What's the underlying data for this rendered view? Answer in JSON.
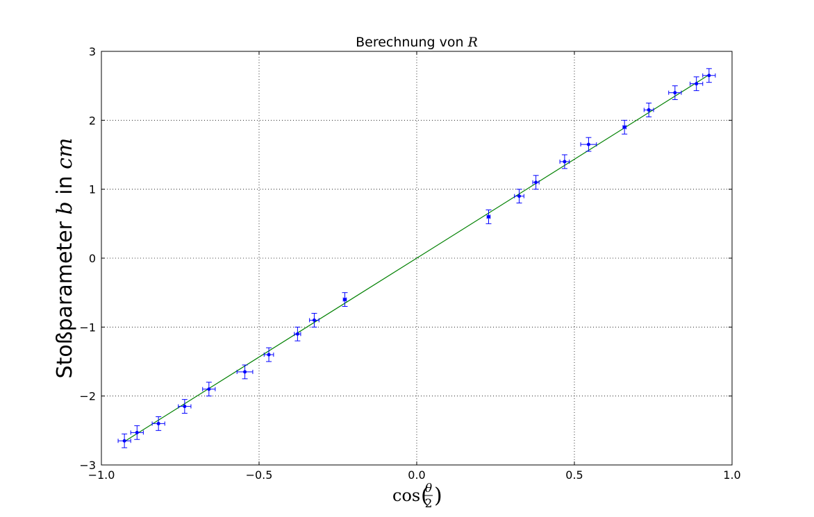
{
  "chart_data": {
    "type": "scatter",
    "title": "Berechnung von ",
    "title_math": "R",
    "xlabel_func": "cos",
    "xlabel_num": "θ",
    "xlabel_den": "2",
    "ylabel": "Stoßparameter ",
    "ylabel_math1": "b",
    "ylabel_mid": " in ",
    "ylabel_math2": "cm",
    "xlim": [
      -1.0,
      1.0
    ],
    "ylim": [
      -3,
      3
    ],
    "xticks": [
      -1.0,
      -0.5,
      0.0,
      0.5,
      1.0
    ],
    "xtick_labels": [
      "−1.0",
      "−0.5",
      "0.0",
      "0.5",
      "1.0"
    ],
    "yticks": [
      -3,
      -2,
      -1,
      0,
      1,
      2,
      3
    ],
    "ytick_labels": [
      "−3",
      "−2",
      "−1",
      "0",
      "1",
      "2",
      "3"
    ],
    "grid": true,
    "series": [
      {
        "kind": "errorbar",
        "color": "#0000ff",
        "points": [
          {
            "x": -0.927,
            "y": -2.65,
            "xerr": 0.02,
            "yerr": 0.1
          },
          {
            "x": -0.887,
            "y": -2.53,
            "xerr": 0.02,
            "yerr": 0.1
          },
          {
            "x": -0.819,
            "y": -2.4,
            "xerr": 0.02,
            "yerr": 0.1
          },
          {
            "x": -0.736,
            "y": -2.15,
            "xerr": 0.02,
            "yerr": 0.1
          },
          {
            "x": -0.659,
            "y": -1.9,
            "xerr": 0.02,
            "yerr": 0.1
          },
          {
            "x": -0.545,
            "y": -1.65,
            "xerr": 0.025,
            "yerr": 0.1
          },
          {
            "x": -0.469,
            "y": -1.4,
            "xerr": 0.015,
            "yerr": 0.1
          },
          {
            "x": -0.378,
            "y": -1.1,
            "xerr": 0.01,
            "yerr": 0.1
          },
          {
            "x": -0.325,
            "y": -0.9,
            "xerr": 0.015,
            "yerr": 0.1
          },
          {
            "x": -0.228,
            "y": -0.6,
            "xerr": 0.005,
            "yerr": 0.1
          },
          {
            "x": 0.228,
            "y": 0.6,
            "xerr": 0.005,
            "yerr": 0.1
          },
          {
            "x": 0.325,
            "y": 0.9,
            "xerr": 0.015,
            "yerr": 0.1
          },
          {
            "x": 0.378,
            "y": 1.1,
            "xerr": 0.01,
            "yerr": 0.1
          },
          {
            "x": 0.469,
            "y": 1.4,
            "xerr": 0.015,
            "yerr": 0.1
          },
          {
            "x": 0.545,
            "y": 1.65,
            "xerr": 0.025,
            "yerr": 0.1
          },
          {
            "x": 0.659,
            "y": 1.9,
            "xerr": 0.005,
            "yerr": 0.1
          },
          {
            "x": 0.736,
            "y": 2.15,
            "xerr": 0.015,
            "yerr": 0.1
          },
          {
            "x": 0.819,
            "y": 2.4,
            "xerr": 0.02,
            "yerr": 0.1
          },
          {
            "x": 0.887,
            "y": 2.53,
            "xerr": 0.02,
            "yerr": 0.1
          },
          {
            "x": 0.927,
            "y": 2.65,
            "xerr": 0.02,
            "yerr": 0.1
          }
        ]
      },
      {
        "kind": "line",
        "color": "#008000",
        "x": [
          -0.927,
          0.927
        ],
        "y": [
          -2.66,
          2.66
        ]
      }
    ]
  }
}
